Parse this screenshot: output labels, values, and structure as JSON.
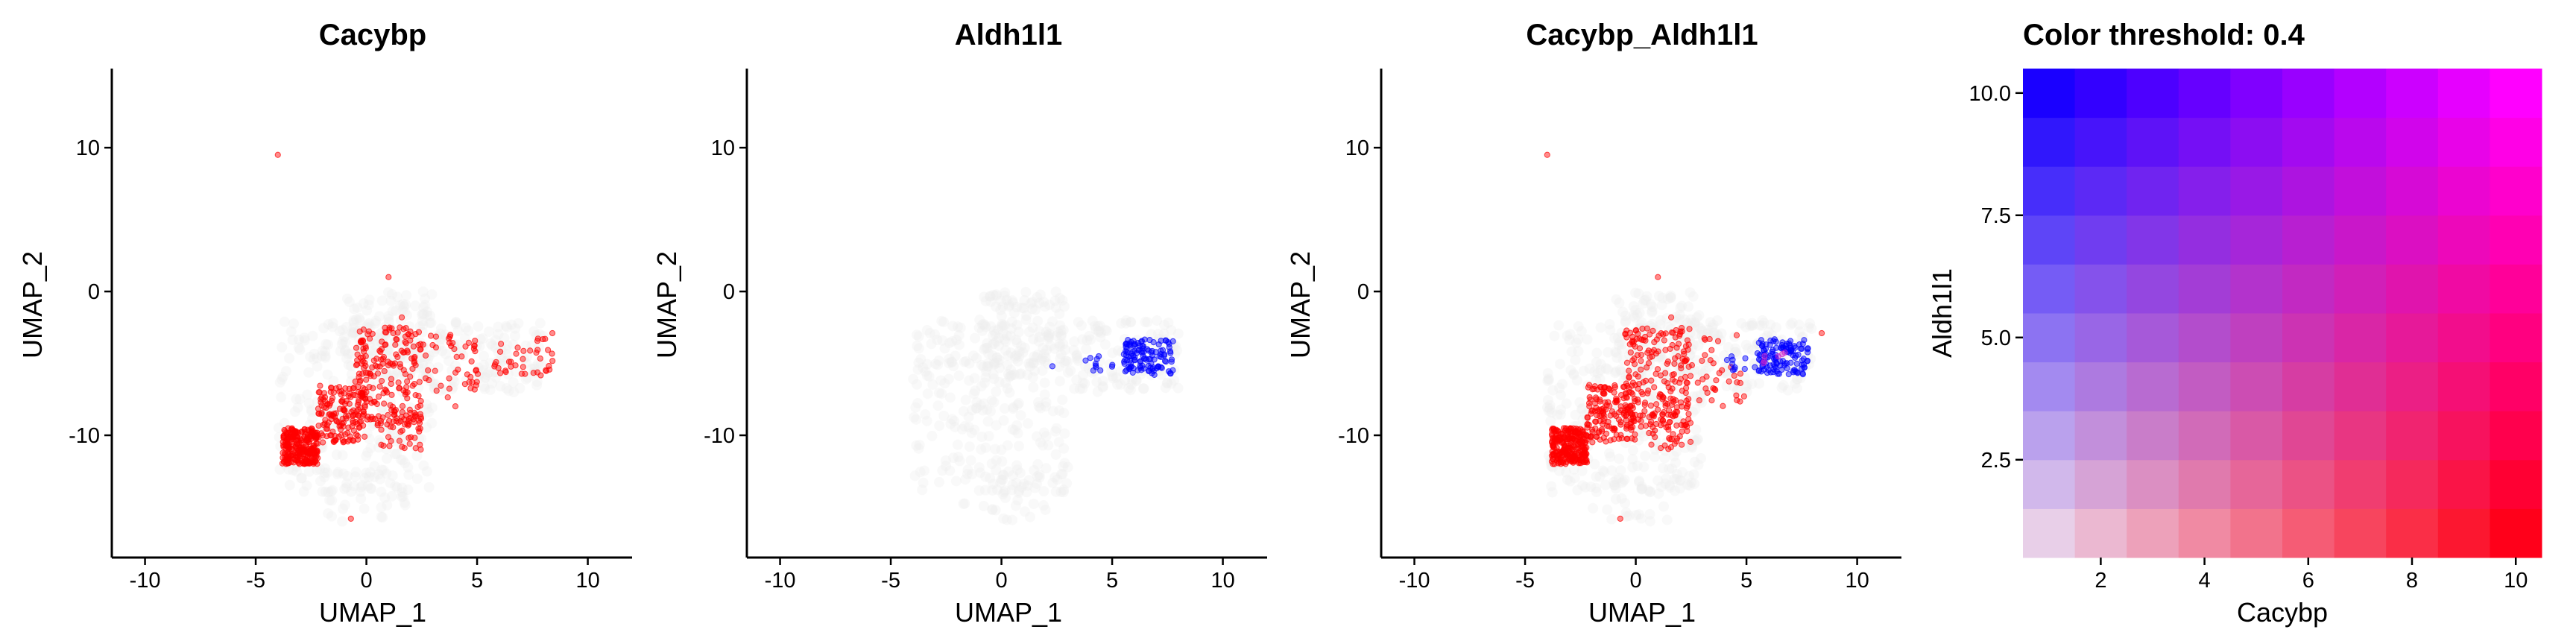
{
  "chart_data": [
    {
      "type": "scatter",
      "title": "Cacybp",
      "xlabel": "UMAP_1",
      "ylabel": "UMAP_2",
      "xlim": [
        -11.5,
        12
      ],
      "ylim": [
        -18.5,
        15.5
      ],
      "xticks": [
        -10,
        -5,
        0,
        5,
        10
      ],
      "yticks": [
        -10,
        0,
        10
      ],
      "background_cells": "light grey",
      "highlight_color": "#ff0000",
      "clusters": [
        {
          "x": [
            -3.8,
            -2.2
          ],
          "y": [
            -12,
            -9.5
          ],
          "n": 260,
          "color": "#ff0000"
        },
        {
          "x": [
            -2.2,
            0.0
          ],
          "y": [
            -10.5,
            -6.5
          ],
          "n": 150,
          "color": "#ff0000"
        },
        {
          "x": [
            -0.5,
            2.5
          ],
          "y": [
            -9.5,
            -2.5
          ],
          "n": 200,
          "color": "#ff0000"
        },
        {
          "x": [
            0.5,
            2.5
          ],
          "y": [
            -11,
            -8.5
          ],
          "n": 40,
          "color": "#ff0000"
        },
        {
          "x": [
            2.5,
            5.0
          ],
          "y": [
            -8,
            -3
          ],
          "n": 40,
          "color": "#ff0000"
        },
        {
          "x": [
            4.5,
            8.5
          ],
          "y": [
            -6,
            -3
          ],
          "n": 45,
          "color": "#ff0000"
        }
      ],
      "points": [
        {
          "x": -4.0,
          "y": 9.5,
          "color": "#ff0000"
        },
        {
          "x": 1.0,
          "y": 1.0,
          "color": "#ff0000"
        },
        {
          "x": 1.6,
          "y": -1.8,
          "color": "#ff0000"
        },
        {
          "x": -0.7,
          "y": -15.8,
          "color": "#ff0000"
        },
        {
          "x": 8.4,
          "y": -2.9,
          "color": "#ff0000"
        }
      ]
    },
    {
      "type": "scatter",
      "title": "Aldh1l1",
      "xlabel": "UMAP_1",
      "ylabel": "UMAP_2",
      "xlim": [
        -11.5,
        12
      ],
      "ylim": [
        -18.5,
        15.5
      ],
      "xticks": [
        -10,
        -5,
        0,
        5,
        10
      ],
      "yticks": [
        -10,
        0,
        10
      ],
      "background_cells": "light grey",
      "highlight_color": "#0000ff",
      "clusters": [
        {
          "x": [
            5.5,
            7.8
          ],
          "y": [
            -5.8,
            -3.3
          ],
          "n": 120,
          "color": "#0000ff"
        },
        {
          "x": [
            4.0,
            5.5
          ],
          "y": [
            -5.5,
            -4.5
          ],
          "n": 10,
          "color": "#0000ff"
        }
      ],
      "points": [
        {
          "x": 2.3,
          "y": -5.2,
          "color": "#0000ff"
        },
        {
          "x": 3.8,
          "y": -4.8,
          "color": "#0000ff"
        }
      ]
    },
    {
      "type": "scatter",
      "title": "Cacybp_Aldh1l1",
      "xlabel": "UMAP_1",
      "ylabel": "UMAP_2",
      "xlim": [
        -11.5,
        12
      ],
      "ylim": [
        -18.5,
        15.5
      ],
      "xticks": [
        -10,
        -5,
        0,
        5,
        10
      ],
      "yticks": [
        -10,
        0,
        10
      ],
      "background_cells": "light grey",
      "clusters": [
        {
          "x": [
            -3.8,
            -2.2
          ],
          "y": [
            -12,
            -9.5
          ],
          "n": 260,
          "color": "#ff0000"
        },
        {
          "x": [
            -2.2,
            0.0
          ],
          "y": [
            -10.5,
            -6.5
          ],
          "n": 150,
          "color": "#ff0000"
        },
        {
          "x": [
            -0.5,
            2.5
          ],
          "y": [
            -9.5,
            -2.5
          ],
          "n": 200,
          "color": "#ff0000"
        },
        {
          "x": [
            0.5,
            2.5
          ],
          "y": [
            -11,
            -8.5
          ],
          "n": 40,
          "color": "#ff0000"
        },
        {
          "x": [
            2.5,
            5.0
          ],
          "y": [
            -8,
            -3
          ],
          "n": 35,
          "color": "#ff0000"
        },
        {
          "x": [
            5.5,
            7.8
          ],
          "y": [
            -5.8,
            -3.3
          ],
          "n": 120,
          "color": "#0000ff"
        },
        {
          "x": [
            4.0,
            5.5
          ],
          "y": [
            -5.5,
            -4.5
          ],
          "n": 10,
          "color": "#0000ff"
        },
        {
          "x": [
            5.5,
            6.8
          ],
          "y": [
            -5.5,
            -4.0
          ],
          "n": 6,
          "color": "#cc22cc"
        }
      ],
      "points": [
        {
          "x": -4.0,
          "y": 9.5,
          "color": "#ff0000"
        },
        {
          "x": 1.0,
          "y": 1.0,
          "color": "#ff0000"
        },
        {
          "x": 1.6,
          "y": -1.8,
          "color": "#ff0000"
        },
        {
          "x": -0.7,
          "y": -15.8,
          "color": "#ff0000"
        },
        {
          "x": 8.4,
          "y": -2.9,
          "color": "#ff0000"
        }
      ]
    },
    {
      "type": "heatmap",
      "title": "Color threshold: 0.4",
      "xlabel": "Cacybp",
      "ylabel": "Aldh1l1",
      "grid_size": 10,
      "xlim": [
        0.5,
        10.5
      ],
      "ylim": [
        0.5,
        10.5
      ],
      "xticks": [
        "2",
        "4",
        "6",
        "8",
        "10"
      ],
      "yticks": [
        "2.5",
        "5.0",
        "7.5",
        "10.0"
      ],
      "ytick_values": [
        2.5,
        5.0,
        7.5,
        10.0
      ],
      "colors": {
        "low": "#ffffff",
        "x_high": "#ff0000",
        "y_high": "#0000ff",
        "both_high": "#ff00ff"
      }
    }
  ]
}
